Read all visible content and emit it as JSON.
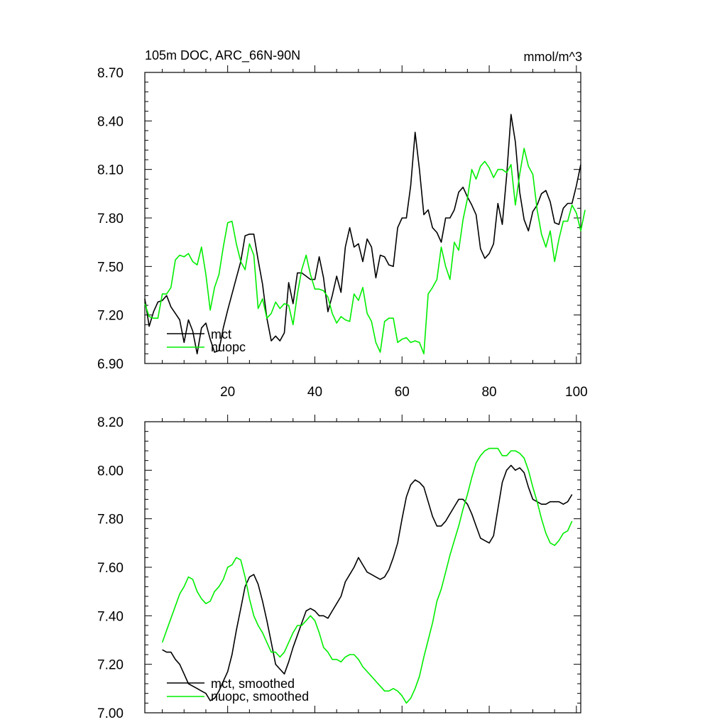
{
  "colors": {
    "mct": "#000000",
    "nuopc": "#00ee00"
  },
  "chart_data": [
    {
      "type": "line",
      "title": "105m DOC, ARC_66N-90N",
      "units": "mmol/m^3",
      "xlim": [
        1,
        101
      ],
      "ylim": [
        6.9,
        8.7
      ],
      "x_ticks": [
        20,
        40,
        60,
        80,
        100
      ],
      "x_tick_labels": [
        "20",
        "40",
        "60",
        "80",
        "100"
      ],
      "y_ticks": [
        6.9,
        7.2,
        7.5,
        7.8,
        8.1,
        8.4,
        8.7
      ],
      "y_tick_labels": [
        "6.90",
        "7.20",
        "7.50",
        "7.80",
        "8.10",
        "8.40",
        "8.70"
      ],
      "legend_position": "bottom-left",
      "series": [
        {
          "name": "mct",
          "color_key": "mct",
          "x_start": 1,
          "values": [
            7.3,
            7.13,
            7.22,
            7.28,
            7.29,
            7.32,
            7.25,
            7.21,
            7.17,
            7.03,
            7.17,
            7.1,
            6.96,
            7.12,
            7.15,
            7.05,
            6.97,
            6.98,
            7.12,
            7.23,
            7.33,
            7.43,
            7.53,
            7.69,
            7.7,
            7.7,
            7.54,
            7.39,
            7.18,
            7.04,
            7.07,
            7.04,
            7.09,
            7.4,
            7.27,
            7.46,
            7.46,
            7.44,
            7.42,
            7.42,
            7.56,
            7.43,
            7.22,
            7.32,
            7.44,
            7.34,
            7.62,
            7.74,
            7.62,
            7.64,
            7.53,
            7.67,
            7.62,
            7.43,
            7.57,
            7.56,
            7.51,
            7.5,
            7.74,
            7.8,
            7.8,
            8.0,
            8.33,
            8.1,
            7.82,
            7.85,
            7.74,
            7.71,
            7.65,
            7.8,
            7.8,
            7.85,
            7.96,
            7.99,
            7.93,
            7.88,
            7.82,
            7.61,
            7.55,
            7.58,
            7.64,
            7.89,
            7.76,
            8.06,
            8.44,
            8.27,
            7.96,
            7.79,
            7.72,
            7.84,
            7.88,
            7.95,
            7.97,
            7.9,
            7.77,
            7.76,
            7.86,
            7.89,
            7.89,
            8.0,
            8.13
          ]
        },
        {
          "name": "nuopc",
          "color_key": "nuopc",
          "x_start": 1,
          "values": [
            7.27,
            7.19,
            7.18,
            7.18,
            7.33,
            7.33,
            7.37,
            7.54,
            7.57,
            7.56,
            7.58,
            7.53,
            7.51,
            7.62,
            7.45,
            7.23,
            7.37,
            7.45,
            7.62,
            7.77,
            7.78,
            7.64,
            7.53,
            7.48,
            7.64,
            7.57,
            7.24,
            7.3,
            7.18,
            7.21,
            7.28,
            7.24,
            7.27,
            7.26,
            7.14,
            7.33,
            7.48,
            7.57,
            7.45,
            7.36,
            7.36,
            7.35,
            7.31,
            7.21,
            7.15,
            7.19,
            7.17,
            7.16,
            7.33,
            7.29,
            7.37,
            7.21,
            7.16,
            7.03,
            6.97,
            7.16,
            7.18,
            7.18,
            7.03,
            7.05,
            7.06,
            7.03,
            7.04,
            7.03,
            6.96,
            7.33,
            7.37,
            7.42,
            7.62,
            7.5,
            7.42,
            7.65,
            7.6,
            7.79,
            7.92,
            8.1,
            8.04,
            8.12,
            8.15,
            8.11,
            8.05,
            8.1,
            8.1,
            8.08,
            8.13,
            7.88,
            8.07,
            8.23,
            8.12,
            8.07,
            7.85,
            7.7,
            7.62,
            7.72,
            7.53,
            7.67,
            7.78,
            7.78,
            7.88,
            7.83,
            7.72,
            7.85
          ]
        }
      ],
      "legend": [
        "mct",
        "nuopc"
      ]
    },
    {
      "type": "line",
      "title": "",
      "xlim": [
        1,
        101
      ],
      "ylim": [
        7.0,
        8.2
      ],
      "x_ticks": [
        20,
        40,
        60,
        80,
        100
      ],
      "x_tick_labels": [],
      "y_ticks": [
        7.0,
        7.2,
        7.4,
        7.6,
        7.8,
        8.0,
        8.2
      ],
      "y_tick_labels": [
        "7.00",
        "7.20",
        "7.40",
        "7.60",
        "7.80",
        "8.00",
        "8.20"
      ],
      "legend_position": "bottom-left",
      "series": [
        {
          "name": "mct, smoothed",
          "color_key": "mct",
          "x_start": 5,
          "values": [
            7.26,
            7.25,
            7.25,
            7.22,
            7.2,
            7.16,
            7.12,
            7.11,
            7.1,
            7.09,
            7.08,
            7.05,
            7.06,
            7.09,
            7.13,
            7.17,
            7.24,
            7.34,
            7.43,
            7.52,
            7.56,
            7.57,
            7.53,
            7.46,
            7.38,
            7.29,
            7.2,
            7.18,
            7.16,
            7.21,
            7.27,
            7.32,
            7.37,
            7.42,
            7.43,
            7.42,
            7.4,
            7.4,
            7.39,
            7.42,
            7.45,
            7.48,
            7.54,
            7.57,
            7.6,
            7.64,
            7.61,
            7.58,
            7.57,
            7.56,
            7.55,
            7.56,
            7.59,
            7.64,
            7.7,
            7.8,
            7.89,
            7.94,
            7.96,
            7.95,
            7.93,
            7.87,
            7.81,
            7.77,
            7.77,
            7.79,
            7.82,
            7.85,
            7.88,
            7.88,
            7.86,
            7.82,
            7.77,
            7.72,
            7.71,
            7.7,
            7.73,
            7.84,
            7.95,
            8.0,
            8.02,
            8.0,
            8.01,
            7.99,
            7.93,
            7.88,
            7.87,
            7.86,
            7.86,
            7.87,
            7.87,
            7.87,
            7.86,
            7.87,
            7.9
          ]
        },
        {
          "name": "nuopc, smoothed",
          "color_key": "nuopc",
          "x_start": 5,
          "values": [
            7.29,
            7.34,
            7.39,
            7.44,
            7.49,
            7.52,
            7.56,
            7.55,
            7.5,
            7.47,
            7.45,
            7.46,
            7.5,
            7.52,
            7.55,
            7.6,
            7.61,
            7.64,
            7.63,
            7.56,
            7.47,
            7.4,
            7.36,
            7.33,
            7.29,
            7.25,
            7.25,
            7.23,
            7.25,
            7.29,
            7.33,
            7.36,
            7.36,
            7.38,
            7.4,
            7.38,
            7.33,
            7.27,
            7.25,
            7.22,
            7.22,
            7.21,
            7.23,
            7.24,
            7.24,
            7.22,
            7.19,
            7.17,
            7.15,
            7.13,
            7.11,
            7.09,
            7.09,
            7.1,
            7.09,
            7.07,
            7.04,
            7.06,
            7.1,
            7.15,
            7.23,
            7.3,
            7.37,
            7.46,
            7.51,
            7.58,
            7.65,
            7.71,
            7.77,
            7.84,
            7.9,
            7.97,
            8.03,
            8.06,
            8.08,
            8.09,
            8.09,
            8.09,
            8.06,
            8.06,
            8.08,
            8.08,
            8.07,
            8.05,
            8.0,
            7.93,
            7.87,
            7.8,
            7.74,
            7.7,
            7.69,
            7.71,
            7.74,
            7.75,
            7.79
          ]
        }
      ],
      "legend": [
        "mct, smoothed",
        "nuopc, smoothed"
      ]
    }
  ]
}
